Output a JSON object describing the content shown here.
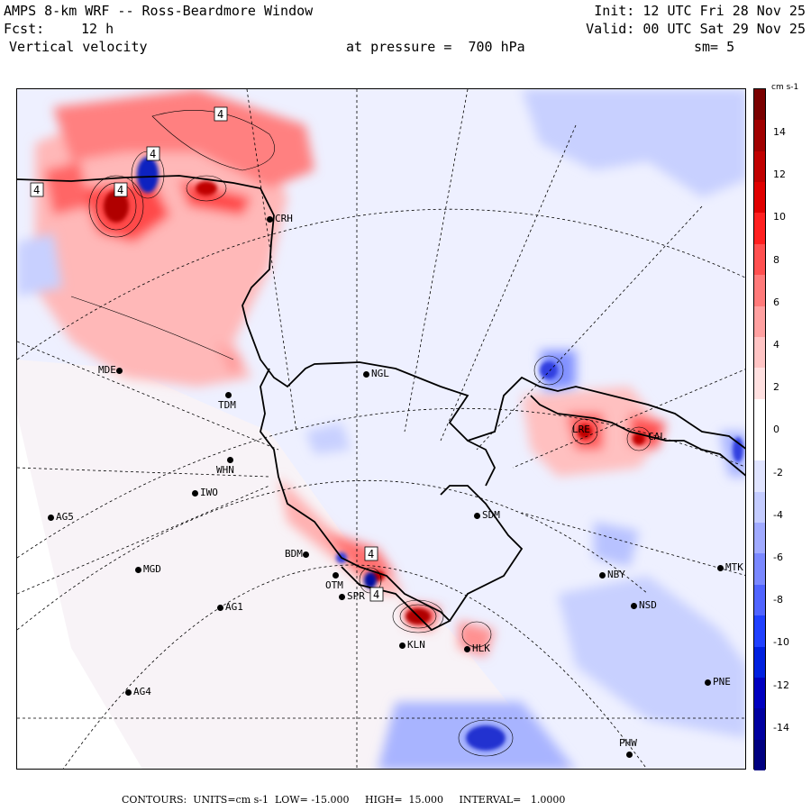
{
  "header": {
    "title": "AMPS 8-km WRF -- Ross-Beardmore Window",
    "init": "Init: 12 UTC Fri 28 Nov 25",
    "fcst_label": "Fcst:",
    "fcst_value": "12 h",
    "valid": "Valid: 00 UTC Sat 29 Nov 25",
    "field": "Vertical velocity",
    "pressure": "at pressure =  700 hPa",
    "smoothing": "sm= 5"
  },
  "stations": [
    {
      "id": "CRH",
      "label": "CRH"
    },
    {
      "id": "NGL",
      "label": "NGL"
    },
    {
      "id": "MDE",
      "label": "MDE"
    },
    {
      "id": "TDM",
      "label": "TDM"
    },
    {
      "id": "WHN",
      "label": "WHN"
    },
    {
      "id": "IWO",
      "label": "IWO"
    },
    {
      "id": "AG5",
      "label": "AG5"
    },
    {
      "id": "MGD",
      "label": "MGD"
    },
    {
      "id": "AG1",
      "label": "AG1"
    },
    {
      "id": "AG4",
      "label": "AG4"
    },
    {
      "id": "SDM",
      "label": "SDM"
    },
    {
      "id": "BDM",
      "label": "BDM"
    },
    {
      "id": "OTM",
      "label": "OTM"
    },
    {
      "id": "SPR",
      "label": "SPR"
    },
    {
      "id": "KLN",
      "label": "KLN"
    },
    {
      "id": "HLK",
      "label": "HLK"
    },
    {
      "id": "NBY",
      "label": "NBY"
    },
    {
      "id": "MTK",
      "label": "MTK"
    },
    {
      "id": "NSD",
      "label": "NSD"
    },
    {
      "id": "PNE",
      "label": "PNE"
    },
    {
      "id": "PHW",
      "label": "PHW"
    },
    {
      "id": "LRE",
      "label": "LRE"
    },
    {
      "id": "CAL",
      "label": "CAL"
    }
  ],
  "contour_labels": [
    "4",
    "4",
    "4",
    "4",
    "4",
    "4"
  ],
  "colorbar": {
    "units": "cm s-1",
    "ticks": [
      "14",
      "12",
      "10",
      "8",
      "6",
      "4",
      "2",
      "0",
      "-2",
      "-4",
      "-6",
      "-8",
      "-10",
      "-12",
      "-14"
    ],
    "colors": [
      "#7a0000",
      "#a00000",
      "#c00000",
      "#e00000",
      "#ff2020",
      "#ff5050",
      "#ff7a7a",
      "#ffa0a0",
      "#ffc4c4",
      "#ffe0e0",
      "#ffffff",
      "#ffffff",
      "#e0e4ff",
      "#c4ccff",
      "#a0aaff",
      "#7a88ff",
      "#5064ff",
      "#2040ff",
      "#0020e0",
      "#0000c0",
      "#0000a0",
      "#000080"
    ]
  },
  "footer": {
    "text": "CONTOURS:  UNITS=cm s-1  LOW= -15.000     HIGH=  15.000     INTERVAL=   1.0000"
  }
}
